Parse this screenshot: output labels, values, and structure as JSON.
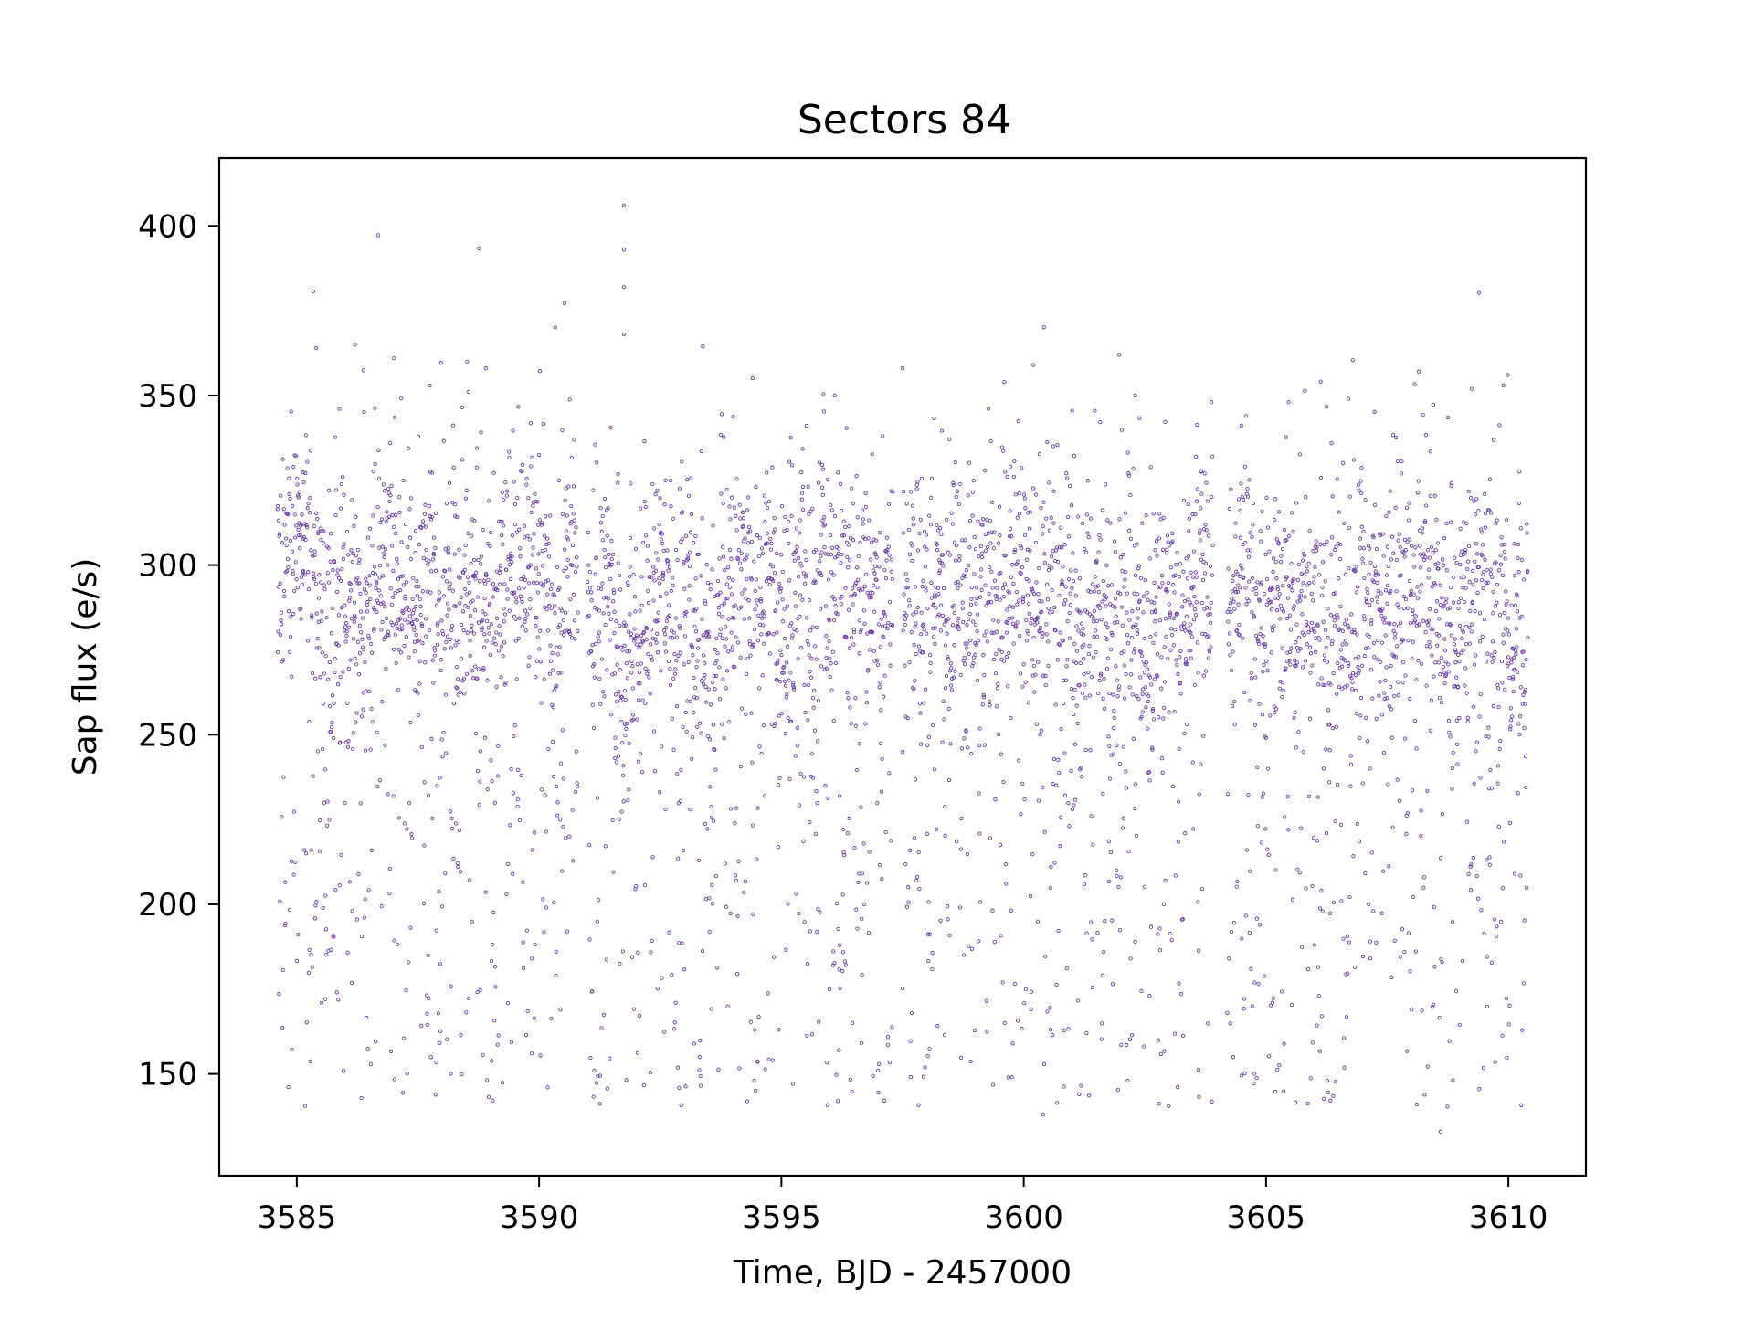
{
  "chart_data": {
    "type": "scatter",
    "title": "Sectors 84",
    "xlabel": "Time, BJD - 2457000",
    "ylabel": "Sap flux (e/s)",
    "xlim": [
      3583.4,
      3611.6
    ],
    "ylim": [
      120,
      420
    ],
    "xticks": [
      3585,
      3590,
      3595,
      3600,
      3605,
      3610
    ],
    "yticks": [
      150,
      200,
      250,
      300,
      350,
      400
    ],
    "grid": false,
    "legend": "none",
    "marker": "hollow-circle",
    "colors": {
      "points": "#6a3aa0",
      "axes": "#000000",
      "background": "#ffffff"
    },
    "series": [
      {
        "segments": [
          {
            "x_start": 3584.6,
            "x_end": 3590.8,
            "core_level": 295,
            "core_spread": 16
          },
          {
            "x_start": 3591.0,
            "x_end": 3597.3,
            "core_level": 285,
            "core_spread": 17
          },
          {
            "x_start": 3597.5,
            "x_end": 3603.9,
            "core_level": 287,
            "core_spread": 17
          },
          {
            "x_start": 3604.2,
            "x_end": 3610.4,
            "core_level": 284,
            "core_spread": 16
          }
        ],
        "scattered_range": [
          140,
          255
        ],
        "outliers": [
          {
            "x": 3591.75,
            "y": 406
          },
          {
            "x": 3591.75,
            "y": 393
          },
          {
            "x": 3591.75,
            "y": 382
          },
          {
            "x": 3591.75,
            "y": 368
          },
          {
            "x": 3585.4,
            "y": 364
          },
          {
            "x": 3586.2,
            "y": 365
          },
          {
            "x": 3587.0,
            "y": 361
          },
          {
            "x": 3588.9,
            "y": 358
          },
          {
            "x": 3600.2,
            "y": 359
          },
          {
            "x": 3599.6,
            "y": 354
          },
          {
            "x": 3609.9,
            "y": 353
          },
          {
            "x": 3606.7,
            "y": 349
          },
          {
            "x": 3596.1,
            "y": 350
          },
          {
            "x": 3597.5,
            "y": 358
          },
          {
            "x": 3602.3,
            "y": 350
          },
          {
            "x": 3608.6,
            "y": 133
          },
          {
            "x": 3600.4,
            "y": 138
          }
        ]
      }
    ]
  }
}
